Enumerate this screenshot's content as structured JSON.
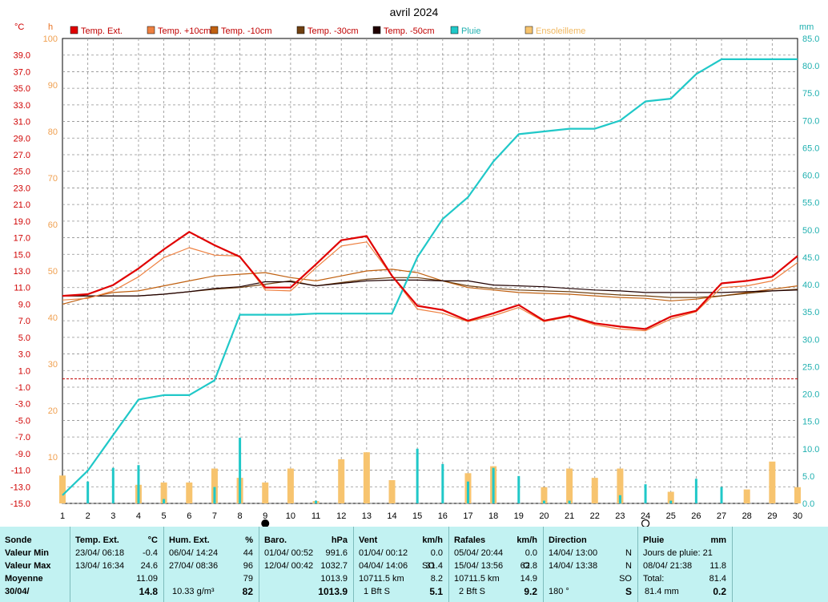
{
  "chart_data": {
    "type": "line",
    "title": "avril 2024",
    "left_axis_unit": "°C",
    "secondary_left_axis_unit": "h",
    "right_axis_unit": "mm",
    "x": [
      1,
      2,
      3,
      4,
      5,
      6,
      7,
      8,
      9,
      10,
      11,
      12,
      13,
      14,
      15,
      16,
      17,
      18,
      19,
      20,
      21,
      22,
      23,
      24,
      25,
      26,
      27,
      28,
      29,
      30
    ],
    "xlim": [
      1,
      30
    ],
    "ylim_temp": [
      -15,
      41
    ],
    "ylim_hours": [
      0,
      100
    ],
    "ylim_rain": [
      0,
      85
    ],
    "temp_ticks": [
      "39.0",
      "37.0",
      "35.0",
      "33.0",
      "31.0",
      "29.0",
      "27.0",
      "25.0",
      "23.0",
      "21.0",
      "19.0",
      "17.0",
      "15.0",
      "13.0",
      "11.0",
      "9.0",
      "7.0",
      "5.0",
      "3.0",
      "1.0",
      "-1.0",
      "-3.0",
      "-5.0",
      "-7.0",
      "-9.0",
      "-11.0",
      "-13.0",
      "-15.0"
    ],
    "hour_ticks": [
      "100",
      "90",
      "80",
      "70",
      "60",
      "50",
      "40",
      "30",
      "20",
      "10"
    ],
    "rain_ticks": [
      "85.0",
      "80.0",
      "75.0",
      "70.0",
      "65.0",
      "60.0",
      "55.0",
      "50.0",
      "45.0",
      "40.0",
      "35.0",
      "30.0",
      "25.0",
      "20.0",
      "15.0",
      "10.0",
      "5.0",
      "0.0"
    ],
    "freezing_line": 0,
    "series": [
      {
        "name": "Temp. Ext.",
        "color": "#e00000",
        "axis": "temp",
        "values": [
          10.0,
          10.2,
          11.3,
          13.3,
          15.6,
          17.7,
          16.1,
          14.7,
          11.0,
          11.0,
          13.8,
          16.7,
          17.2,
          12.4,
          8.8,
          8.3,
          7.0,
          7.9,
          8.9,
          7.0,
          7.6,
          6.7,
          6.3,
          6.0,
          7.5,
          8.2,
          11.5,
          11.8,
          12.3,
          14.8
        ]
      },
      {
        "name": "Temp. +10cm",
        "color": "#ee8040",
        "axis": "temp",
        "values": [
          9.5,
          9.7,
          10.6,
          12.3,
          14.6,
          15.8,
          14.9,
          14.8,
          10.7,
          10.6,
          13.4,
          16.0,
          16.5,
          12.4,
          8.4,
          7.9,
          6.9,
          7.6,
          8.6,
          6.9,
          7.5,
          6.5,
          6.0,
          5.8,
          7.2,
          8.1,
          11.0,
          11.2,
          11.8,
          14.0
        ]
      },
      {
        "name": "Temp. -10cm",
        "color": "#c06010",
        "axis": "temp",
        "values": [
          9.0,
          9.8,
          10.4,
          10.6,
          11.2,
          11.8,
          12.4,
          12.6,
          12.8,
          12.2,
          11.8,
          12.4,
          13.0,
          13.2,
          12.8,
          11.8,
          11.0,
          10.7,
          10.4,
          10.3,
          10.2,
          10.0,
          9.8,
          9.7,
          9.4,
          9.6,
          10.0,
          10.4,
          10.8,
          11.2
        ]
      },
      {
        "name": "Temp. -30cm",
        "color": "#704010",
        "axis": "temp",
        "values": [
          10.0,
          10.0,
          10.0,
          10.0,
          10.2,
          10.5,
          10.8,
          11.0,
          11.4,
          11.8,
          11.2,
          11.6,
          12.0,
          12.2,
          12.2,
          11.8,
          11.2,
          10.9,
          10.7,
          10.6,
          10.5,
          10.3,
          10.1,
          10.0,
          9.8,
          9.8,
          10.0,
          10.3,
          10.6,
          10.8
        ]
      },
      {
        "name": "Temp. -50cm",
        "color": "#200000",
        "axis": "temp",
        "values": [
          10.0,
          10.0,
          10.0,
          10.0,
          10.2,
          10.5,
          10.9,
          11.1,
          11.7,
          11.7,
          11.2,
          11.5,
          11.8,
          11.9,
          11.9,
          11.8,
          11.8,
          11.3,
          11.2,
          11.1,
          10.9,
          10.7,
          10.6,
          10.4,
          10.4,
          10.4,
          10.4,
          10.5,
          10.6,
          10.7
        ]
      },
      {
        "name": "Pluie",
        "color": "#20c8c8",
        "axis": "rain",
        "values": [
          1.5,
          6.0,
          12.5,
          19.0,
          19.8,
          19.8,
          22.5,
          34.5,
          34.5,
          34.5,
          34.7,
          34.7,
          34.7,
          34.7,
          45.0,
          52.0,
          56.0,
          62.5,
          67.5,
          68.0,
          68.5,
          68.5,
          70.0,
          73.5,
          74.0,
          78.5,
          81.2,
          81.2,
          81.2,
          81.2
        ]
      },
      {
        "name": "Ensoleilleme",
        "color": "#f7c46f",
        "axis": "hours",
        "type": "bar",
        "values": [
          6.0,
          0,
          0,
          4.0,
          4.5,
          4.5,
          7.5,
          5.5,
          4.5,
          7.5,
          0.5,
          9.5,
          11.0,
          5.0,
          0,
          0,
          6.5,
          8.0,
          0,
          3.5,
          7.5,
          5.5,
          7.5,
          0,
          2.5,
          0,
          0,
          3.0,
          9.0,
          3.5
        ]
      }
    ],
    "daily_rain_bars": {
      "color": "#20c8c8",
      "axis": "rain",
      "values": [
        0,
        4.0,
        6.5,
        7.0,
        0.8,
        0,
        3.0,
        12.0,
        0,
        0,
        0.5,
        0,
        0,
        0,
        10.0,
        7.2,
        4.0,
        6.5,
        5.0,
        0.5,
        0.5,
        0,
        1.5,
        3.5,
        0.5,
        4.5,
        3.0,
        0,
        0,
        0
      ]
    }
  },
  "markers": {
    "moon_new_icon_day": 9,
    "moon_full_icon_day": 24
  },
  "table": {
    "row_labels": [
      "Sonde",
      "Valeur Min",
      "Valeur Max",
      "Moyenne",
      "30/04/"
    ],
    "temp": {
      "title": "Temp. Ext.",
      "unit": "°C",
      "min_date": "23/04/  06:18",
      "min": "-0.4",
      "max_date": "13/04/  16:34",
      "max": "24.6",
      "avg": "11.09",
      "cur": "14.8"
    },
    "hum": {
      "title": "Hum. Ext.",
      "unit": "%",
      "min_date": "06/04/  14:24",
      "min": "44",
      "max_date": "27/04/  08:36",
      "max": "96",
      "avg": "79",
      "cur_extra": "10.33 g/m³",
      "cur": "82"
    },
    "baro": {
      "title": "Baro.",
      "unit": "hPa",
      "min_date": "01/04/  00:52",
      "min": "991.6",
      "max_date": "12/04/  00:42",
      "max": "1032.7",
      "avg": "1013.9",
      "cur": "1013.9"
    },
    "vent": {
      "title": "Vent",
      "unit": "km/h",
      "min_date": "01/04/  00:12",
      "min": "0.0",
      "max_date": "04/04/  14:06",
      "max_dir": "SO",
      "max": "31.4",
      "avg_extra": "10711.5 km",
      "avg": "8.2",
      "cur_extra": "1 Bft S",
      "cur": "5.1"
    },
    "rafales": {
      "title": "Rafales",
      "unit": "km/h",
      "min_date": "05/04/  20:44",
      "min": "0.0",
      "max_date": "15/04/  13:56",
      "max_dir": "O",
      "max": "62.8",
      "avg_extra": "10711.5 km",
      "avg": "14.9",
      "cur_extra": "2 Bft S",
      "cur": "9.2"
    },
    "direction": {
      "title": "Direction",
      "min_date": "14/04/  13:00",
      "min": "N",
      "max_date": "14/04/  13:38",
      "max": "N",
      "avg": "SO",
      "cur_extra": "180 °",
      "cur": "S"
    },
    "pluie": {
      "title": "Pluie",
      "unit": "mm",
      "days": "Jours de pluie: 21",
      "max_date": "08/04/  21:38",
      "max": "11.8",
      "total_label": "Total:",
      "total": "81.4",
      "cur_extra": "81.4 mm",
      "cur": "0.2"
    }
  }
}
